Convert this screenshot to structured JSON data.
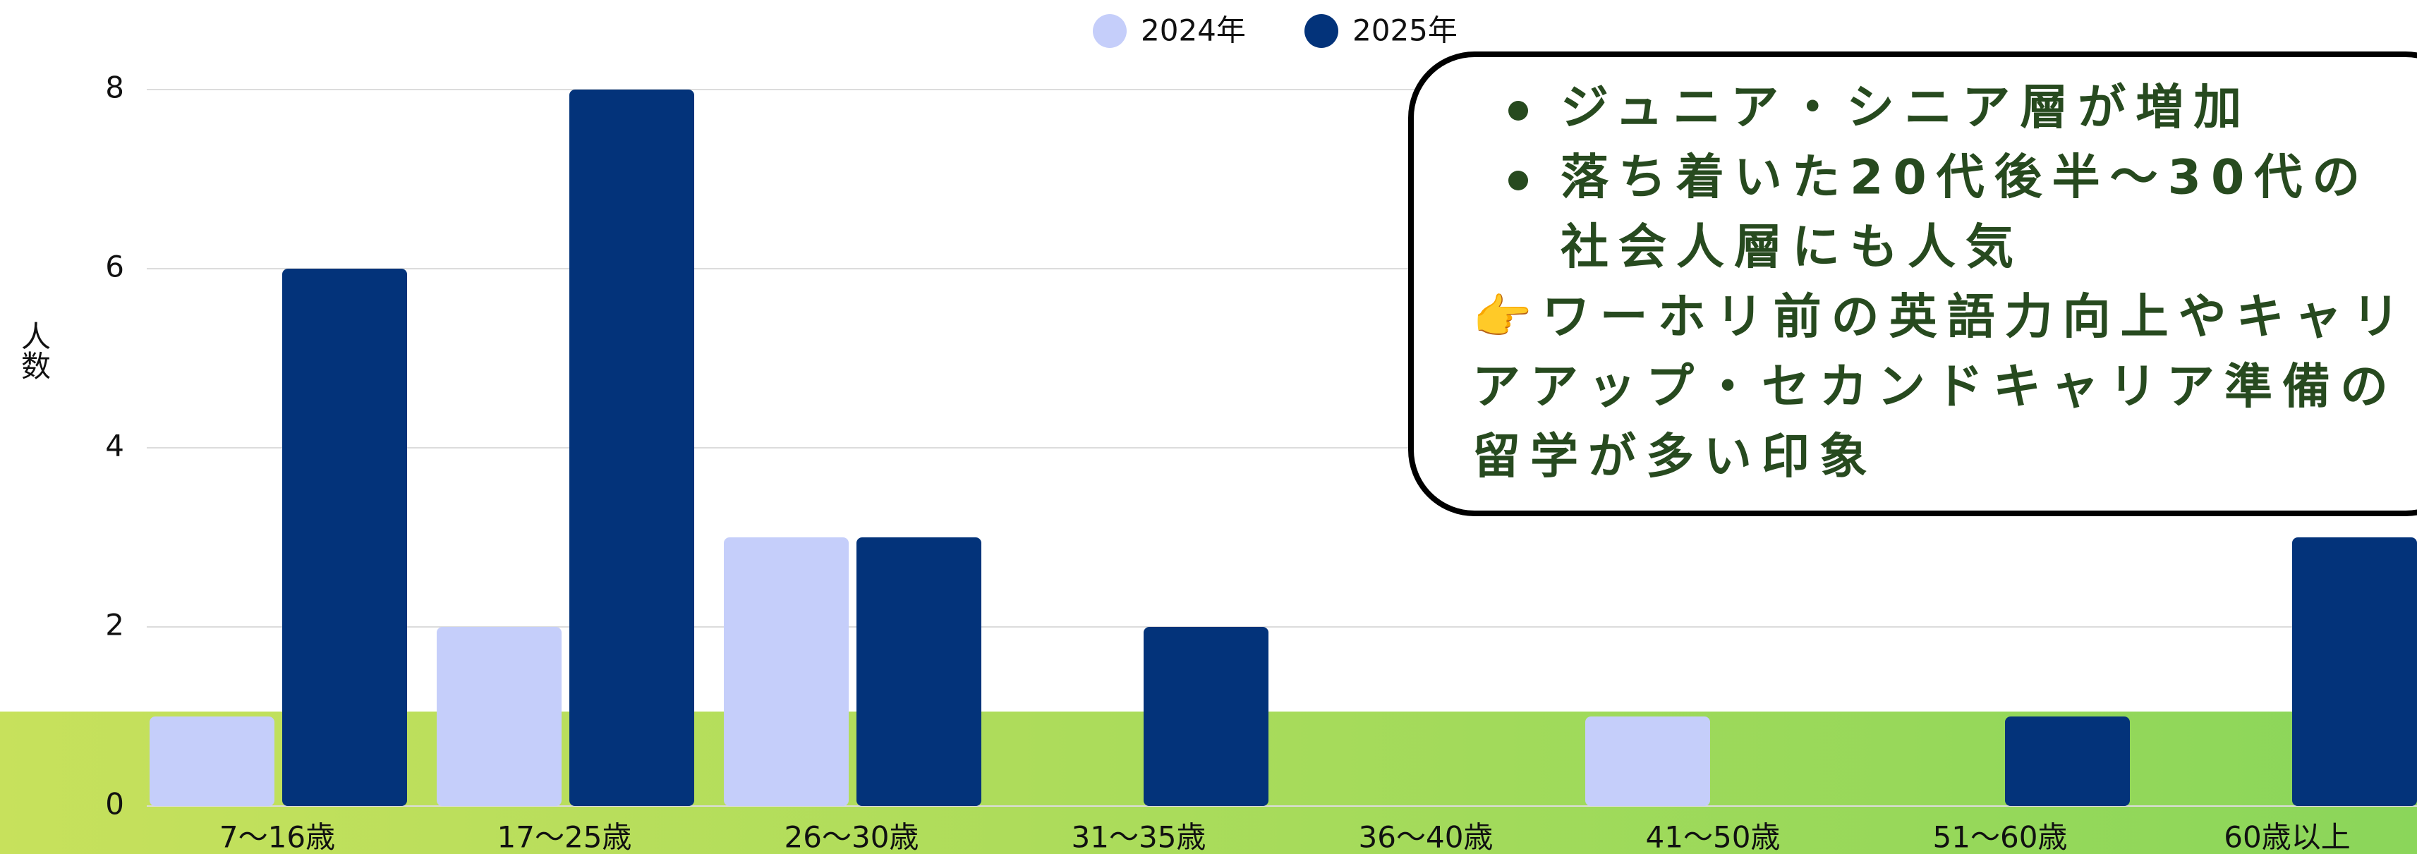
{
  "chart_data": {
    "type": "bar",
    "ylabel": "人数",
    "categories": [
      "7〜16歳",
      "17〜25歳",
      "26〜30歳",
      "31〜35歳",
      "36〜40歳",
      "41〜50歳",
      "51〜60歳",
      "60歳以上"
    ],
    "series": [
      {
        "name": "2024年",
        "color": "#c5cefa",
        "values": [
          1,
          2,
          3,
          0,
          0,
          1,
          0,
          0
        ]
      },
      {
        "name": "2025年",
        "color": "#03337a",
        "values": [
          6,
          8,
          3,
          2,
          0,
          0,
          1,
          3
        ]
      }
    ],
    "ylim": [
      0,
      8
    ],
    "yticks": [
      0,
      2,
      4,
      6,
      8
    ],
    "grid": true,
    "legend": "top",
    "annotation": {
      "bullets": [
        [
          "ジュニア・シニア層が増加"
        ],
        [
          "落ち着いた20代後半〜30代の",
          "社会人層にも人気"
        ]
      ],
      "note": [
        "👉ワーホリ前の英語力向上やキャリ",
        "アアップ・セカンドキャリア準備の",
        "留学が多い印象"
      ]
    }
  }
}
